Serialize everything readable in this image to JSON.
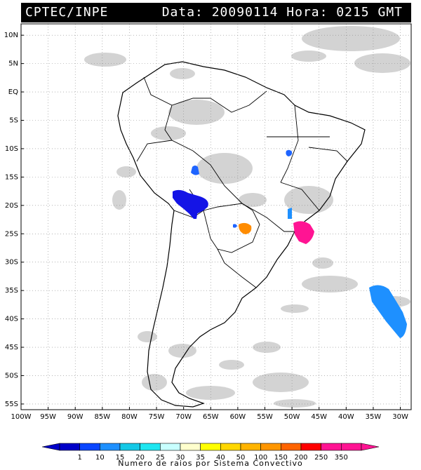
{
  "header": {
    "source": "CPTEC/INPE",
    "date_label": "Data:",
    "date_value": "20090114",
    "time_label": "Hora:",
    "time_value": "0215 GMT"
  },
  "map": {
    "lat_labels": [
      "10N",
      "5N",
      "EQ",
      "5S",
      "10S",
      "15S",
      "20S",
      "25S",
      "30S",
      "35S",
      "40S",
      "45S",
      "50S",
      "55S"
    ],
    "lon_labels": [
      "100W",
      "95W",
      "90W",
      "85W",
      "80W",
      "75W",
      "70W",
      "65W",
      "60W",
      "55W",
      "50W",
      "45W",
      "40W",
      "35W",
      "30W"
    ],
    "lon_range": [
      -100,
      -28
    ],
    "lat_range": [
      -56,
      12
    ],
    "systems": [
      {
        "color": "#1464ff",
        "value_class": "10"
      },
      {
        "color": "#1414e6",
        "value_class": "1"
      },
      {
        "color": "#1414e6",
        "value_class": "1"
      },
      {
        "color": "#1464ff",
        "value_class": "10"
      },
      {
        "color": "#1e90ff",
        "value_class": "15"
      },
      {
        "color": "#ff8c00",
        "value_class": "150"
      },
      {
        "color": "#ff1493",
        "value_class": "350"
      },
      {
        "color": "#1e90ff",
        "value_class": "15"
      }
    ]
  },
  "legend": {
    "labels": [
      "1",
      "10",
      "15",
      "20",
      "25",
      "30",
      "35",
      "40",
      "50",
      "100",
      "150",
      "200",
      "250",
      "350"
    ],
    "colors": [
      "#0000c8",
      "#0a46ff",
      "#1e90ff",
      "#14c8e6",
      "#1ee6f0",
      "#c8ffff",
      "#ffffcd",
      "#ffff00",
      "#ffd700",
      "#ffb400",
      "#ff9600",
      "#ff6400",
      "#ff0000",
      "#ff1493",
      "#ff1493"
    ],
    "caption": "Numero de raios por Sistema Convectivo"
  }
}
